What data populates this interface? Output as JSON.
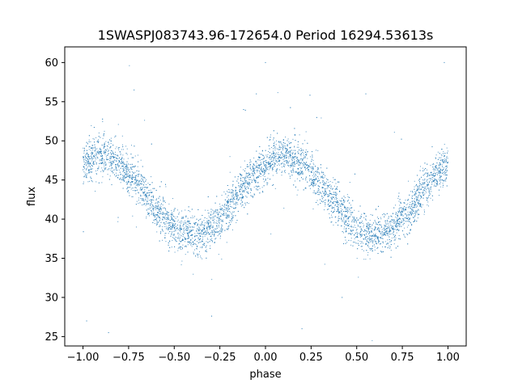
{
  "chart_data": {
    "type": "scatter",
    "title": "1SWASPJ083743.96-172654.0 Period 16294.53613s",
    "xlabel": "phase",
    "ylabel": "flux",
    "xlim": [
      -1.1,
      1.1
    ],
    "ylim": [
      23.8,
      62.0
    ],
    "xticks": [
      -1.0,
      -0.75,
      -0.5,
      -0.25,
      0.0,
      0.25,
      0.5,
      0.75,
      1.0
    ],
    "xtick_labels": [
      "−1.00",
      "−0.75",
      "−0.50",
      "−0.25",
      "0.00",
      "0.25",
      "0.50",
      "0.75",
      "1.00"
    ],
    "yticks": [
      25,
      30,
      35,
      40,
      45,
      50,
      55,
      60
    ],
    "ytick_labels": [
      "25",
      "30",
      "35",
      "40",
      "45",
      "50",
      "55",
      "60"
    ],
    "grid": false,
    "legend": "none",
    "point_color": "#1f77b4",
    "series": [
      {
        "phase_range": [
          -1.0,
          1.0
        ],
        "model": "sinusoid",
        "mean_flux": 43.0,
        "amplitude": 5.0,
        "peak_phases": [
          -0.9,
          0.1
        ],
        "trough_phases": [
          -0.4,
          0.6
        ],
        "scatter_sd": 1.3,
        "points": [
          {
            "phase": -0.9,
            "flux": 48.0
          },
          {
            "phase": -0.65,
            "flux": 43.0
          },
          {
            "phase": -0.4,
            "flux": 38.0
          },
          {
            "phase": -0.15,
            "flux": 43.0
          },
          {
            "phase": 0.1,
            "flux": 48.0
          },
          {
            "phase": 0.35,
            "flux": 43.0
          },
          {
            "phase": 0.6,
            "flux": 38.0
          },
          {
            "phase": 0.85,
            "flux": 43.0
          },
          {
            "phase": -0.98,
            "flux": 27.0
          },
          {
            "phase": -0.86,
            "flux": 25.5
          },
          {
            "phase": -0.12,
            "flux": 54.0
          },
          {
            "phase": -0.05,
            "flux": 56.0
          },
          {
            "phase": 0.0,
            "flux": 60.0
          },
          {
            "phase": 0.2,
            "flux": 26.0
          },
          {
            "phase": 0.55,
            "flux": 56.0
          },
          {
            "phase": 0.98,
            "flux": 60.0
          },
          {
            "phase": -0.72,
            "flux": 56.5
          },
          {
            "phase": 0.42,
            "flux": 30.0
          }
        ]
      }
    ]
  }
}
